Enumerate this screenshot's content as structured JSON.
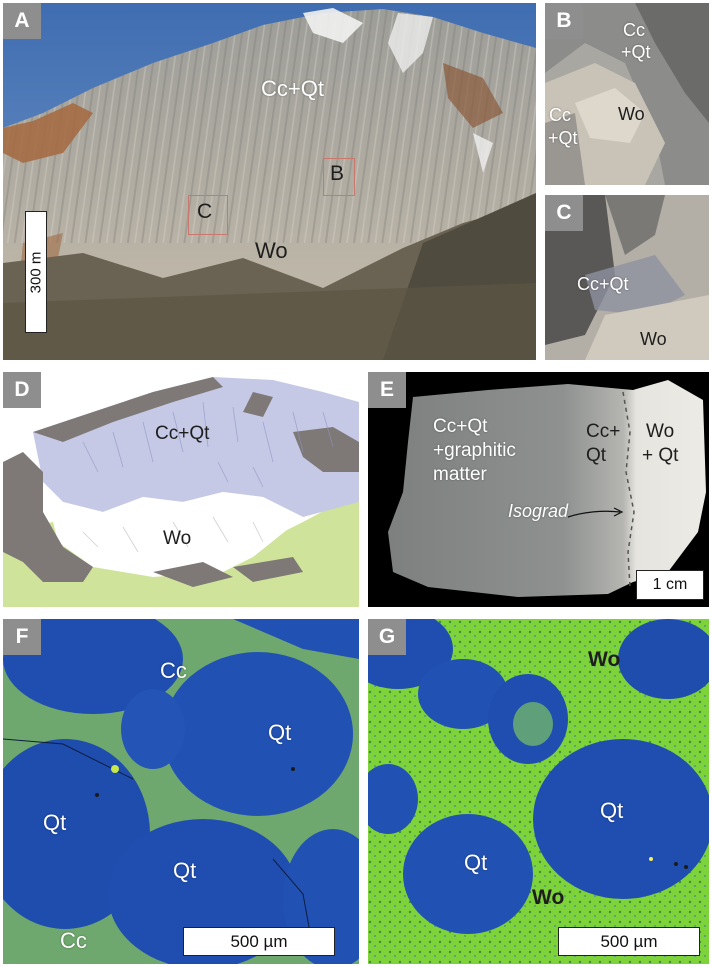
{
  "colors": {
    "sky": "#4d77b6",
    "rock_gray": "#a3a39b",
    "rock_brown": "#a66a40",
    "vegetation": "#5c5545",
    "sketch_lavender": "#c5c9e6",
    "sketch_gray": "#7e7876",
    "sketch_green": "#cfe39a",
    "quartz_blue": "#1f4eb0",
    "calcite_green": "#6fa86e",
    "wollastonite_green": "#7ed23a",
    "letter_badge": "#8e8e8e"
  },
  "panels": {
    "A": {
      "letter": "A",
      "labels": {
        "cc_qt": "Cc+Qt",
        "wo": "Wo",
        "box_b": "B",
        "box_c": "C"
      },
      "scale": "300 m"
    },
    "B": {
      "letter": "B",
      "labels": {
        "cc_qt_top_1": "Cc",
        "cc_qt_top_2": "+Qt",
        "wo": "Wo",
        "cc_qt_left_1": "Cc",
        "cc_qt_left_2": "+Qt"
      }
    },
    "C": {
      "letter": "C",
      "labels": {
        "cc_qt": "Cc+Qt",
        "wo": "Wo"
      }
    },
    "D": {
      "letter": "D",
      "labels": {
        "cc_qt": "Cc+Qt",
        "wo": "Wo"
      }
    },
    "E": {
      "letter": "E",
      "labels": {
        "line1": "Cc+Qt",
        "line2": "+graphitic",
        "line3": "matter",
        "cc_1": "Cc+",
        "cc_2": "Qt",
        "wo_1": "Wo",
        "wo_2": "+ Qt",
        "isograd": "Isograd"
      },
      "scale": "1 cm"
    },
    "F": {
      "letter": "F",
      "labels": {
        "cc_top": "Cc",
        "qt_right": "Qt",
        "qt_left": "Qt",
        "qt_bottom": "Qt",
        "cc_bottom": "Cc"
      },
      "scale": "500 µm"
    },
    "G": {
      "letter": "G",
      "labels": {
        "wo_top": "Wo",
        "qt_right": "Qt",
        "qt_left": "Qt",
        "wo_bottom": "Wo"
      },
      "scale": "500 µm"
    }
  }
}
